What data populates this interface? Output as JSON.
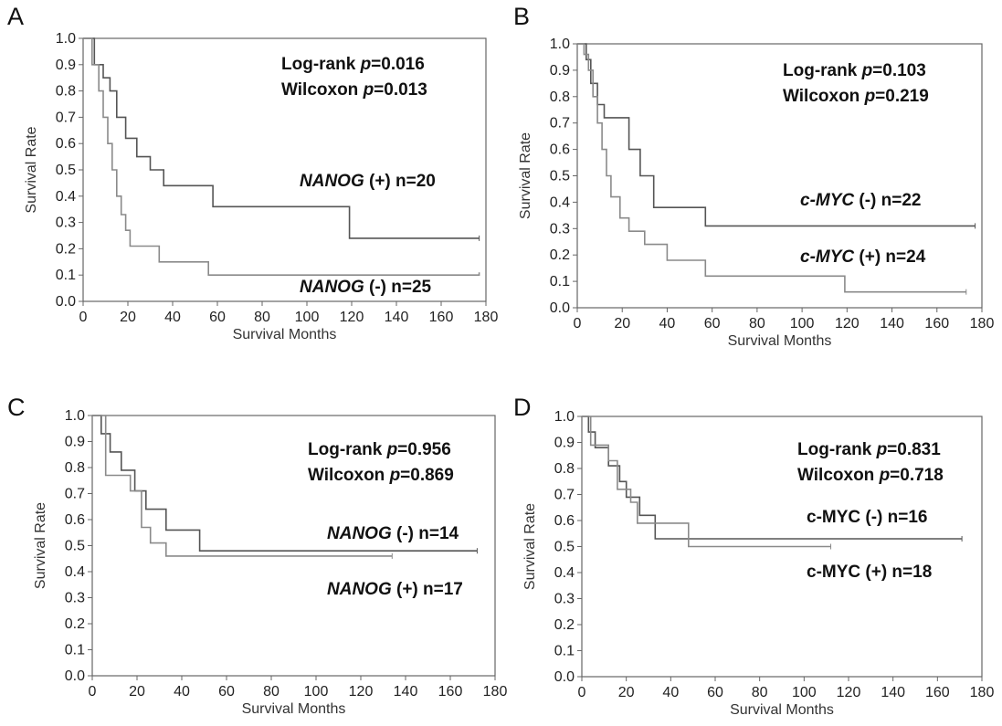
{
  "colors": {
    "curve_dark": "#555555",
    "curve_light": "#8a8a8a",
    "axis": "#666666",
    "text": "#111111"
  },
  "chart_data": [
    {
      "type": "line",
      "panel": "A",
      "xlabel": "Survival Months",
      "ylabel": "Survival Rate",
      "xlim": [
        0,
        180
      ],
      "ylim": [
        0,
        1.0
      ],
      "xticks": [
        "0",
        "20",
        "40",
        "60",
        "80",
        "100",
        "120",
        "140",
        "160",
        "180"
      ],
      "yticks": [
        "0.0",
        "0.1",
        "0.2",
        "0.3",
        "0.4",
        "0.5",
        "0.6",
        "0.7",
        "0.8",
        "0.9",
        "1.0"
      ],
      "stats": [
        {
          "prefix": "Log-rank ",
          "p": "p",
          "value": "=0.016"
        },
        {
          "prefix": "Wilcoxon ",
          "p": "p",
          "value": "=0.013"
        }
      ],
      "series": [
        {
          "gene": "NANOG",
          "status": " (+) n=20",
          "italic": true,
          "x": [
            0,
            5,
            9,
            12,
            15,
            19,
            24,
            30,
            36,
            48,
            58,
            88,
            119,
            147,
            172,
            177
          ],
          "y": [
            1.0,
            0.9,
            0.85,
            0.8,
            0.7,
            0.62,
            0.55,
            0.5,
            0.44,
            0.44,
            0.36,
            0.36,
            0.24,
            0.24,
            0.24,
            0.24
          ]
        },
        {
          "gene": "NANOG",
          "status": " (-) n=25",
          "italic": true,
          "x": [
            0,
            4,
            7,
            9,
            11,
            13,
            15,
            17,
            19,
            21,
            24,
            34,
            56,
            120,
            177
          ],
          "y": [
            1.0,
            0.9,
            0.8,
            0.7,
            0.6,
            0.5,
            0.4,
            0.33,
            0.27,
            0.21,
            0.21,
            0.15,
            0.1,
            0.1,
            0.11
          ]
        }
      ]
    },
    {
      "type": "line",
      "panel": "B",
      "xlabel": "Survival Months",
      "ylabel": "Survival Rate",
      "xlim": [
        0,
        180
      ],
      "ylim": [
        0,
        1.0
      ],
      "xticks": [
        "0",
        "20",
        "40",
        "60",
        "80",
        "100",
        "120",
        "140",
        "160",
        "180"
      ],
      "yticks": [
        "0.0",
        "0.1",
        "0.2",
        "0.3",
        "0.4",
        "0.5",
        "0.6",
        "0.7",
        "0.8",
        "0.9",
        "1.0"
      ],
      "stats": [
        {
          "prefix": "Log-rank ",
          "p": "p",
          "value": "=0.103"
        },
        {
          "prefix": "Wilcoxon ",
          "p": "p",
          "value": "=0.219"
        }
      ],
      "series": [
        {
          "gene": "c-MYC",
          "status": " (-) n=22",
          "italic": true,
          "x": [
            0,
            4,
            6,
            9,
            12,
            19,
            23,
            28,
            34,
            44,
            57,
            88,
            147,
            177
          ],
          "y": [
            1.0,
            0.94,
            0.85,
            0.77,
            0.72,
            0.72,
            0.6,
            0.5,
            0.38,
            0.38,
            0.31,
            0.31,
            0.31,
            0.31
          ]
        },
        {
          "gene": "c-MYC",
          "status": " (+) n=24",
          "italic": true,
          "x": [
            0,
            3,
            5,
            7,
            9,
            11,
            13,
            15,
            19,
            23,
            30,
            40,
            57,
            100,
            119,
            173
          ],
          "y": [
            1.0,
            0.96,
            0.9,
            0.8,
            0.7,
            0.6,
            0.5,
            0.42,
            0.34,
            0.29,
            0.24,
            0.18,
            0.12,
            0.12,
            0.06,
            0.06
          ]
        }
      ]
    },
    {
      "type": "line",
      "panel": "C",
      "xlabel": "Survival Months",
      "ylabel": "Survival Rate",
      "xlim": [
        0,
        180
      ],
      "ylim": [
        0,
        1.0
      ],
      "xticks": [
        "0",
        "20",
        "40",
        "60",
        "80",
        "100",
        "120",
        "140",
        "160",
        "180"
      ],
      "yticks": [
        "0.0",
        "0.1",
        "0.2",
        "0.3",
        "0.4",
        "0.5",
        "0.6",
        "0.7",
        "0.8",
        "0.9",
        "1.0"
      ],
      "stats": [
        {
          "prefix": "Log-rank ",
          "p": "p",
          "value": "=0.956"
        },
        {
          "prefix": "Wilcoxon ",
          "p": "p",
          "value": "=0.869"
        }
      ],
      "series": [
        {
          "gene": "NANOG",
          "status": " (-) n=14",
          "italic": true,
          "x": [
            0,
            4,
            8,
            13,
            19,
            24,
            33,
            48,
            60,
            80,
            110,
            134,
            172
          ],
          "y": [
            1.0,
            0.93,
            0.86,
            0.79,
            0.71,
            0.64,
            0.56,
            0.48,
            0.48,
            0.48,
            0.48,
            0.48,
            0.48
          ]
        },
        {
          "gene": "NANOG",
          "status": " (+) n=17",
          "italic": true,
          "x": [
            0,
            6,
            12,
            17,
            22,
            26,
            33,
            48,
            80,
            114,
            134
          ],
          "y": [
            1.0,
            0.77,
            0.77,
            0.71,
            0.57,
            0.51,
            0.46,
            0.46,
            0.46,
            0.46,
            0.46
          ]
        }
      ]
    },
    {
      "type": "line",
      "panel": "D",
      "xlabel": "Survival Months",
      "ylabel": "Survival Rate",
      "xlim": [
        0,
        180
      ],
      "ylim": [
        0,
        1.0
      ],
      "xticks": [
        "0",
        "20",
        "40",
        "60",
        "80",
        "100",
        "120",
        "140",
        "160",
        "180"
      ],
      "yticks": [
        "0.0",
        "0.1",
        "0.2",
        "0.3",
        "0.4",
        "0.5",
        "0.6",
        "0.7",
        "0.8",
        "0.9",
        "1.0"
      ],
      "stats": [
        {
          "prefix": "Log-rank ",
          "p": "p",
          "value": "=0.831"
        },
        {
          "prefix": "Wilcoxon ",
          "p": "p",
          "value": "=0.718"
        }
      ],
      "series": [
        {
          "gene": "c-MYC",
          "status": " (-) n=16",
          "italic": false,
          "x": [
            0,
            3,
            6,
            12,
            17,
            20,
            26,
            33,
            60,
            110,
            171
          ],
          "y": [
            1.0,
            0.94,
            0.88,
            0.81,
            0.75,
            0.69,
            0.62,
            0.53,
            0.53,
            0.53,
            0.53
          ]
        },
        {
          "gene": "c-MYC",
          "status": " (+) n=18",
          "italic": false,
          "x": [
            0,
            4,
            7,
            12,
            16,
            22,
            25,
            33,
            48,
            80,
            112
          ],
          "y": [
            1.0,
            0.89,
            0.89,
            0.83,
            0.72,
            0.67,
            0.59,
            0.59,
            0.5,
            0.5,
            0.5
          ]
        }
      ]
    }
  ]
}
